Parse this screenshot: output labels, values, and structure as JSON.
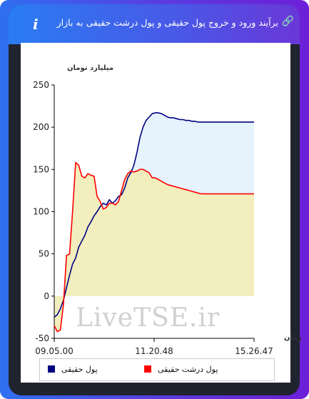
{
  "header": {
    "title": "برآیند ورود و خروج پول حقیقی و پول درشت حقیقی به بازار",
    "link_icon": "link-icon",
    "info_icon_label": "i"
  },
  "watermark": "LiveTSE.ir",
  "chart_data": {
    "type": "area",
    "ylabel": "میلیارد تومان",
    "xlabel": "زمان",
    "ylim": [
      -50,
      250
    ],
    "yticks": [
      -50,
      0,
      50,
      100,
      150,
      200,
      250
    ],
    "xticks": [
      "09.05.00",
      "11.20.48",
      "15.26.47"
    ],
    "x_minutes": [
      0,
      4,
      8,
      12,
      16,
      20,
      24,
      28,
      32,
      36,
      40,
      44,
      48,
      52,
      56,
      60,
      64,
      68,
      72,
      76,
      80,
      84,
      88,
      92,
      96,
      100,
      104,
      108,
      112,
      116,
      120,
      124,
      128,
      132,
      136,
      140,
      144,
      148,
      152,
      156,
      160,
      164,
      168,
      172,
      176,
      180,
      184,
      188,
      192,
      196,
      200,
      204,
      208,
      212,
      216,
      220,
      224,
      228,
      232,
      236,
      240,
      244,
      248,
      252,
      256,
      261
    ],
    "series": [
      {
        "name": "پول حقیقی",
        "color": "#000080",
        "fill": "#e6f2fc",
        "values": [
          -25,
          -22,
          -15,
          -5,
          10,
          25,
          38,
          45,
          58,
          65,
          72,
          82,
          88,
          95,
          100,
          106,
          110,
          108,
          114,
          110,
          113,
          118,
          120,
          128,
          140,
          146,
          155,
          170,
          188,
          200,
          208,
          212,
          216,
          217,
          217,
          216,
          214,
          212,
          211,
          211,
          210,
          209,
          209,
          208,
          208,
          207,
          207,
          206,
          206,
          206,
          206,
          206,
          206,
          206,
          206,
          206,
          206,
          206,
          206,
          206,
          206,
          206,
          206,
          206,
          206,
          206
        ]
      },
      {
        "name": "پول درشت حقیقی",
        "color": "#ff0000",
        "fill": "#f2eebe",
        "values": [
          -35,
          -42,
          -40,
          -10,
          48,
          50,
          100,
          158,
          155,
          142,
          140,
          145,
          143,
          142,
          118,
          112,
          103,
          105,
          110,
          110,
          108,
          112,
          125,
          138,
          145,
          148,
          147,
          148,
          150,
          150,
          148,
          146,
          140,
          140,
          138,
          136,
          134,
          132,
          131,
          130,
          129,
          128,
          127,
          126,
          125,
          124,
          123,
          122,
          121,
          121,
          121,
          121,
          121,
          121,
          121,
          121,
          121,
          121,
          121,
          121,
          121,
          121,
          121,
          121,
          121,
          121
        ]
      }
    ],
    "legend_position": "bottom",
    "grid": false
  }
}
